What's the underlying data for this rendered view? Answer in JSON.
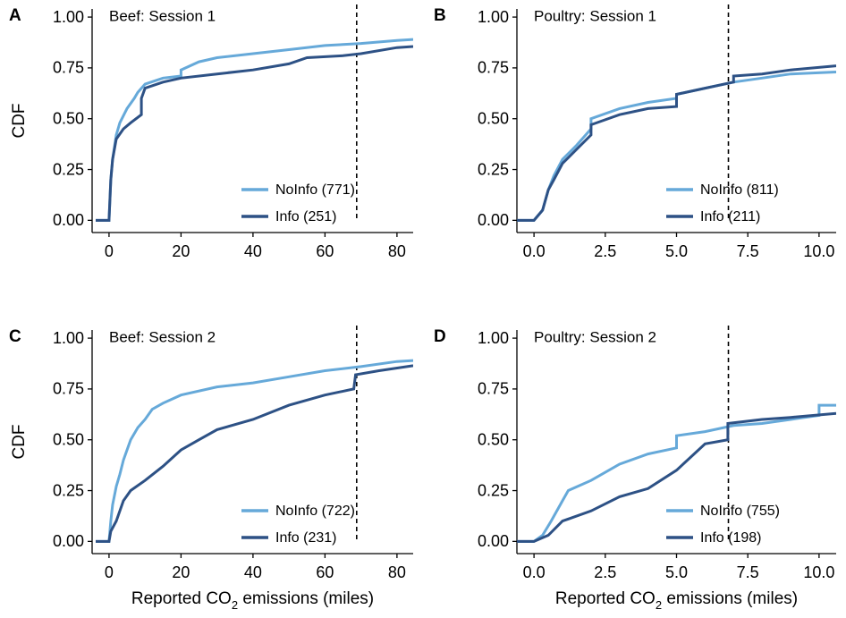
{
  "chart_data": [
    {
      "type": "line",
      "panel_label": "A",
      "title": "Beef: Session 1",
      "ylabel": "CDF",
      "xlim": [
        -4.7,
        84.5
      ],
      "ylim": [
        -0.06,
        1.04
      ],
      "xticks": [
        0,
        20,
        40,
        60,
        80
      ],
      "yticks": [
        {
          "value": 0,
          "label": "0.00"
        },
        {
          "value": 0.25,
          "label": "0.25"
        },
        {
          "value": 0.5,
          "label": "0.50"
        },
        {
          "value": 0.75,
          "label": "0.75"
        },
        {
          "value": 1,
          "label": "1.00"
        }
      ],
      "vline": 68.8,
      "series": [
        {
          "name": "NoInfo (771)",
          "color": "#66a9d9",
          "x": [
            -3.7,
            0,
            0.5,
            1,
            2,
            3,
            5,
            7,
            8,
            10,
            15,
            20,
            20,
            25,
            30,
            40,
            50,
            60,
            70,
            80,
            84.5
          ],
          "values": [
            0,
            0,
            0.2,
            0.3,
            0.42,
            0.48,
            0.55,
            0.6,
            0.63,
            0.67,
            0.7,
            0.71,
            0.74,
            0.78,
            0.8,
            0.82,
            0.84,
            0.86,
            0.87,
            0.885,
            0.89
          ]
        },
        {
          "name": "Info (251)",
          "color": "#2d5185",
          "x": [
            -3.7,
            0,
            0.5,
            1,
            2,
            4,
            6,
            9,
            9,
            10,
            15,
            20,
            30,
            40,
            50,
            55,
            65,
            70,
            80,
            84.5
          ],
          "values": [
            0,
            0,
            0.2,
            0.3,
            0.4,
            0.45,
            0.48,
            0.52,
            0.6,
            0.65,
            0.68,
            0.7,
            0.72,
            0.74,
            0.77,
            0.8,
            0.81,
            0.82,
            0.85,
            0.855
          ]
        }
      ]
    },
    {
      "type": "line",
      "panel_label": "B",
      "title": "Poultry: Session 1",
      "xlim": [
        -0.6,
        10.6
      ],
      "ylim": [
        -0.06,
        1.04
      ],
      "xticks": [
        {
          "value": 0,
          "label": "0.0"
        },
        2.5,
        {
          "value": 5,
          "label": "5.0"
        },
        7.5,
        {
          "value": 10,
          "label": "10.0"
        }
      ],
      "yticks": [
        {
          "value": 0,
          "label": "0.00"
        },
        {
          "value": 0.25,
          "label": "0.25"
        },
        {
          "value": 0.5,
          "label": "0.50"
        },
        {
          "value": 0.75,
          "label": "0.75"
        },
        {
          "value": 1,
          "label": "1.00"
        }
      ],
      "vline": 6.82,
      "series": [
        {
          "name": "NoInfo (811)",
          "color": "#66a9d9",
          "x": [
            -0.6,
            0,
            0.3,
            0.5,
            0.7,
            1,
            1.5,
            2,
            2,
            3,
            4,
            5,
            5,
            6,
            7,
            8,
            9,
            10.6
          ],
          "values": [
            0,
            0,
            0.05,
            0.15,
            0.22,
            0.3,
            0.37,
            0.45,
            0.5,
            0.55,
            0.58,
            0.6,
            0.62,
            0.65,
            0.68,
            0.7,
            0.72,
            0.73
          ]
        },
        {
          "name": "Info (211)",
          "color": "#2d5185",
          "x": [
            -0.6,
            0,
            0.3,
            0.5,
            0.7,
            1,
            1.5,
            2,
            2,
            3,
            4,
            5,
            5,
            6,
            7,
            7,
            8,
            9,
            10.6
          ],
          "values": [
            0,
            0,
            0.05,
            0.15,
            0.2,
            0.28,
            0.35,
            0.42,
            0.47,
            0.52,
            0.55,
            0.56,
            0.62,
            0.65,
            0.68,
            0.71,
            0.72,
            0.74,
            0.76
          ]
        }
      ]
    },
    {
      "type": "line",
      "panel_label": "C",
      "title": "Beef: Session 2",
      "ylabel": "CDF",
      "xlabel": [
        "Reported CO",
        "2",
        " emissions (miles)"
      ],
      "xlim": [
        -4.7,
        84.5
      ],
      "ylim": [
        -0.06,
        1.04
      ],
      "xticks": [
        0,
        20,
        40,
        60,
        80
      ],
      "yticks": [
        {
          "value": 0,
          "label": "0.00"
        },
        {
          "value": 0.25,
          "label": "0.25"
        },
        {
          "value": 0.5,
          "label": "0.50"
        },
        {
          "value": 0.75,
          "label": "0.75"
        },
        {
          "value": 1,
          "label": "1.00"
        }
      ],
      "vline": 68.8,
      "series": [
        {
          "name": "NoInfo (722)",
          "color": "#66a9d9",
          "x": [
            -3.7,
            0,
            0.5,
            1,
            2,
            3,
            4,
            6,
            8,
            10,
            12,
            15,
            20,
            30,
            40,
            50,
            60,
            70,
            80,
            84.5
          ],
          "values": [
            0,
            0,
            0.1,
            0.18,
            0.27,
            0.33,
            0.4,
            0.5,
            0.56,
            0.6,
            0.65,
            0.68,
            0.72,
            0.76,
            0.78,
            0.81,
            0.84,
            0.86,
            0.885,
            0.89
          ]
        },
        {
          "name": "Info (231)",
          "color": "#2d5185",
          "x": [
            -3.7,
            0,
            0.5,
            2,
            4,
            6,
            10,
            15,
            20,
            25,
            30,
            40,
            50,
            60,
            68,
            68.5,
            75,
            84.5
          ],
          "values": [
            0,
            0,
            0.05,
            0.1,
            0.2,
            0.25,
            0.3,
            0.37,
            0.45,
            0.5,
            0.55,
            0.6,
            0.67,
            0.72,
            0.75,
            0.82,
            0.84,
            0.865
          ]
        }
      ]
    },
    {
      "type": "line",
      "panel_label": "D",
      "title": "Poultry: Session 2",
      "xlabel": [
        "Reported CO",
        "2",
        " emissions (miles)"
      ],
      "xlim": [
        -0.6,
        10.6
      ],
      "ylim": [
        -0.06,
        1.04
      ],
      "xticks": [
        {
          "value": 0,
          "label": "0.0"
        },
        2.5,
        {
          "value": 5,
          "label": "5.0"
        },
        7.5,
        {
          "value": 10,
          "label": "10.0"
        }
      ],
      "yticks": [
        {
          "value": 0,
          "label": "0.00"
        },
        {
          "value": 0.25,
          "label": "0.25"
        },
        {
          "value": 0.5,
          "label": "0.50"
        },
        {
          "value": 0.75,
          "label": "0.75"
        },
        {
          "value": 1,
          "label": "1.00"
        }
      ],
      "vline": 6.82,
      "series": [
        {
          "name": "NoInfo (755)",
          "color": "#66a9d9",
          "x": [
            -0.6,
            0,
            0.3,
            0.6,
            1,
            1.2,
            2,
            3,
            4,
            5,
            5,
            6,
            7,
            8,
            9,
            10,
            10,
            10.6
          ],
          "values": [
            0,
            0,
            0.03,
            0.1,
            0.2,
            0.25,
            0.3,
            0.38,
            0.43,
            0.46,
            0.52,
            0.54,
            0.57,
            0.58,
            0.6,
            0.62,
            0.67,
            0.67
          ]
        },
        {
          "name": "Info (198)",
          "color": "#2d5185",
          "x": [
            -0.6,
            0,
            0.5,
            1,
            2,
            3,
            4,
            5,
            6,
            6.8,
            6.8,
            8,
            9,
            10.6
          ],
          "values": [
            0,
            0,
            0.03,
            0.1,
            0.15,
            0.22,
            0.26,
            0.35,
            0.48,
            0.5,
            0.58,
            0.6,
            0.61,
            0.63
          ]
        }
      ]
    }
  ]
}
